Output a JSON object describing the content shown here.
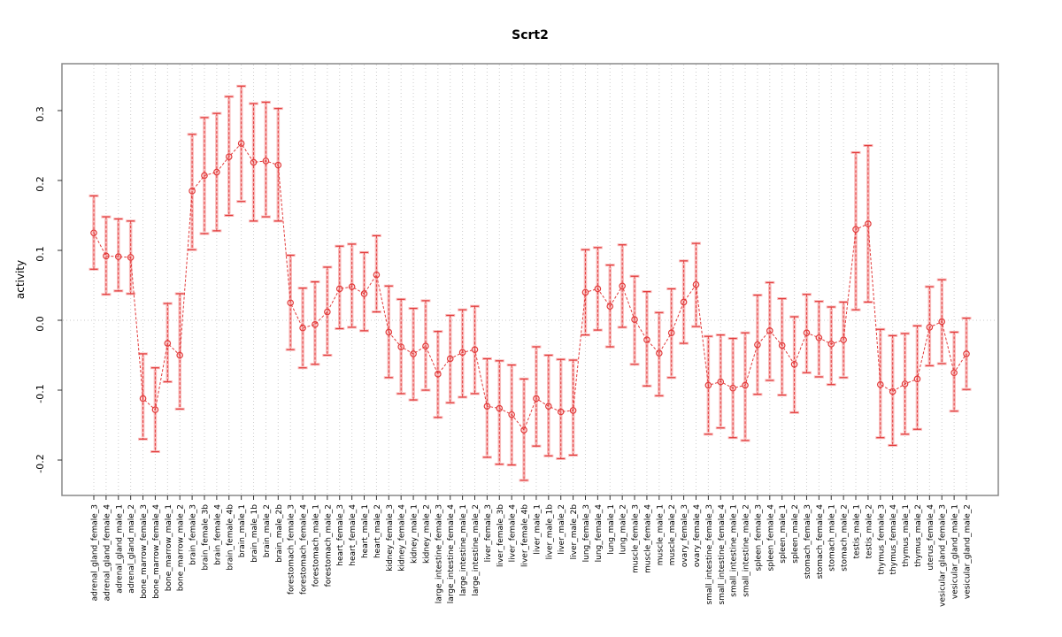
{
  "chart_data": {
    "type": "scatter",
    "subtype": "points-with-error-bars-and-dashed-connecting-line",
    "title": "Scrt2",
    "xlabel": "",
    "ylabel": "activity",
    "ylim": [
      -0.25,
      0.36
    ],
    "yticks": [
      0.3,
      0.2,
      0.1,
      0.0,
      -0.1,
      -0.2
    ],
    "ytick_labels": [
      "0.3",
      "0.2",
      "0.1",
      "0.0",
      "-0.1",
      "-0.2"
    ],
    "grid": "vertical-dotted-per-category-plus-zero-line",
    "legend": "none",
    "categories": [
      "adrenal_gland_female_3",
      "adrenal_gland_female_4",
      "adrenal_gland_male_1",
      "adrenal_gland_male_2",
      "bone_marrow_female_3",
      "bone_marrow_female_4",
      "bone_marrow_male_1",
      "bone_marrow_male_2",
      "brain_female_3",
      "brain_female_3b",
      "brain_female_4",
      "brain_female_4b",
      "brain_male_1",
      "brain_male_1b",
      "brain_male_2",
      "brain_male_2b",
      "forestomach_female_3",
      "forestomach_female_4",
      "forestomach_male_1",
      "forestomach_male_2",
      "heart_female_3",
      "heart_female_4",
      "heart_male_1",
      "heart_male_2",
      "kidney_female_3",
      "kidney_female_4",
      "kidney_male_1",
      "kidney_male_2",
      "large_intestine_female_3",
      "large_intestine_female_4",
      "large_intestine_male_1",
      "large_intestine_male_2",
      "liver_female_3",
      "liver_female_3b",
      "liver_female_4",
      "liver_female_4b",
      "liver_male_1",
      "liver_male_1b",
      "liver_male_2",
      "liver_male_2b",
      "lung_female_3",
      "lung_female_4",
      "lung_male_1",
      "lung_male_2",
      "muscle_female_3",
      "muscle_female_4",
      "muscle_male_1",
      "muscle_male_2",
      "ovary_female_3",
      "ovary_female_4",
      "small_intestine_female_3",
      "small_intestine_female_4",
      "small_intestine_male_1",
      "small_intestine_male_2",
      "spleen_female_3",
      "spleen_female_4",
      "spleen_male_1",
      "spleen_male_2",
      "stomach_female_3",
      "stomach_female_4",
      "stomach_male_1",
      "stomach_male_2",
      "testis_male_1",
      "testis_male_2",
      "thymus_female_3",
      "thymus_female_4",
      "thymus_male_1",
      "thymus_male_2",
      "uterus_female_4",
      "vesicular_gland_female_3",
      "vesicular_gland_male_1",
      "vesicular_gland_male_2"
    ],
    "values": [
      0.125,
      0.092,
      0.091,
      0.09,
      -0.112,
      -0.128,
      -0.033,
      -0.05,
      0.185,
      0.207,
      0.212,
      0.234,
      0.253,
      0.226,
      0.228,
      0.222,
      0.025,
      -0.011,
      -0.006,
      0.012,
      0.045,
      0.048,
      0.038,
      0.065,
      -0.017,
      -0.038,
      -0.048,
      -0.037,
      -0.077,
      -0.055,
      -0.046,
      -0.042,
      -0.123,
      -0.126,
      -0.135,
      -0.157,
      -0.112,
      -0.123,
      -0.131,
      -0.129,
      0.04,
      0.045,
      0.02,
      0.049,
      0.001,
      -0.028,
      -0.047,
      -0.018,
      0.026,
      0.051,
      -0.093,
      -0.088,
      -0.097,
      -0.093,
      -0.035,
      -0.015,
      -0.036,
      -0.063,
      -0.018,
      -0.025,
      -0.034,
      -0.028,
      0.13,
      0.138,
      -0.092,
      -0.102,
      -0.091,
      -0.084,
      -0.01,
      -0.002,
      -0.075,
      -0.048
    ],
    "ci_low": [
      0.073,
      0.037,
      0.042,
      0.038,
      -0.17,
      -0.188,
      -0.088,
      -0.127,
      0.101,
      0.124,
      0.128,
      0.15,
      0.17,
      0.142,
      0.148,
      0.142,
      -0.042,
      -0.068,
      -0.063,
      -0.05,
      -0.012,
      -0.01,
      -0.015,
      0.012,
      -0.082,
      -0.105,
      -0.114,
      -0.1,
      -0.139,
      -0.118,
      -0.11,
      -0.105,
      -0.196,
      -0.206,
      -0.207,
      -0.229,
      -0.18,
      -0.194,
      -0.198,
      -0.193,
      -0.021,
      -0.014,
      -0.038,
      -0.01,
      -0.063,
      -0.094,
      -0.108,
      -0.082,
      -0.033,
      -0.009,
      -0.163,
      -0.154,
      -0.168,
      -0.172,
      -0.106,
      -0.086,
      -0.107,
      -0.132,
      -0.075,
      -0.081,
      -0.092,
      -0.082,
      0.015,
      0.026,
      -0.168,
      -0.179,
      -0.163,
      -0.156,
      -0.065,
      -0.062,
      -0.13,
      -0.099
    ],
    "ci_high": [
      0.178,
      0.148,
      0.145,
      0.142,
      -0.048,
      -0.068,
      0.024,
      0.038,
      0.266,
      0.29,
      0.296,
      0.32,
      0.335,
      0.31,
      0.312,
      0.303,
      0.093,
      0.046,
      0.055,
      0.076,
      0.106,
      0.109,
      0.097,
      0.121,
      0.049,
      0.03,
      0.017,
      0.028,
      -0.016,
      0.007,
      0.015,
      0.02,
      -0.055,
      -0.058,
      -0.064,
      -0.084,
      -0.038,
      -0.05,
      -0.056,
      -0.057,
      0.101,
      0.104,
      0.079,
      0.108,
      0.063,
      0.041,
      0.011,
      0.045,
      0.085,
      0.11,
      -0.023,
      -0.021,
      -0.026,
      -0.018,
      0.036,
      0.054,
      0.031,
      0.005,
      0.037,
      0.027,
      0.019,
      0.026,
      0.24,
      0.25,
      -0.013,
      -0.022,
      -0.019,
      -0.008,
      0.048,
      0.058,
      -0.017,
      0.003
    ],
    "colors": {
      "point_stroke": "#e23b3b",
      "line": "#e23b3b",
      "error_bar_thin": "#e23b3b",
      "error_bar_thick": "rgba(244,119,119,0.5)",
      "gridline": "#cccccc",
      "zero_line": "#c8c8c8",
      "box_border": "#888888",
      "tick": "#333333",
      "text": "#000000",
      "background": "#ffffff"
    }
  }
}
